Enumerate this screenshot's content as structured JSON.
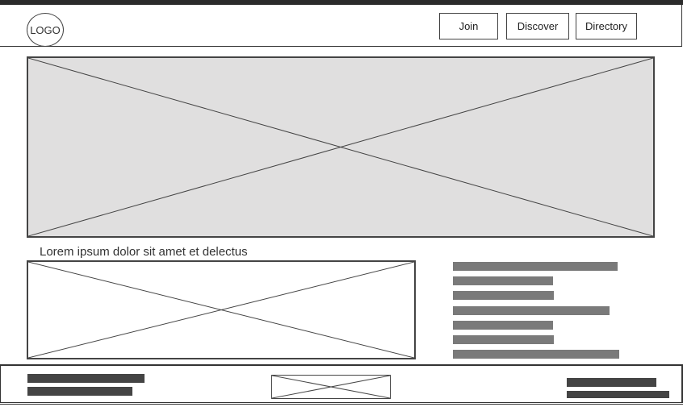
{
  "header": {
    "logo_text": "LOGO",
    "nav": {
      "join": "Join",
      "discover": "Discover",
      "directory": "Directory"
    }
  },
  "main": {
    "caption": "Lorem ipsum dolor sit amet et delectus"
  },
  "colors": {
    "hero_fill": "#e0dfdf",
    "text_placeholder": "#7a7a7a",
    "footer_placeholder": "#444444"
  }
}
